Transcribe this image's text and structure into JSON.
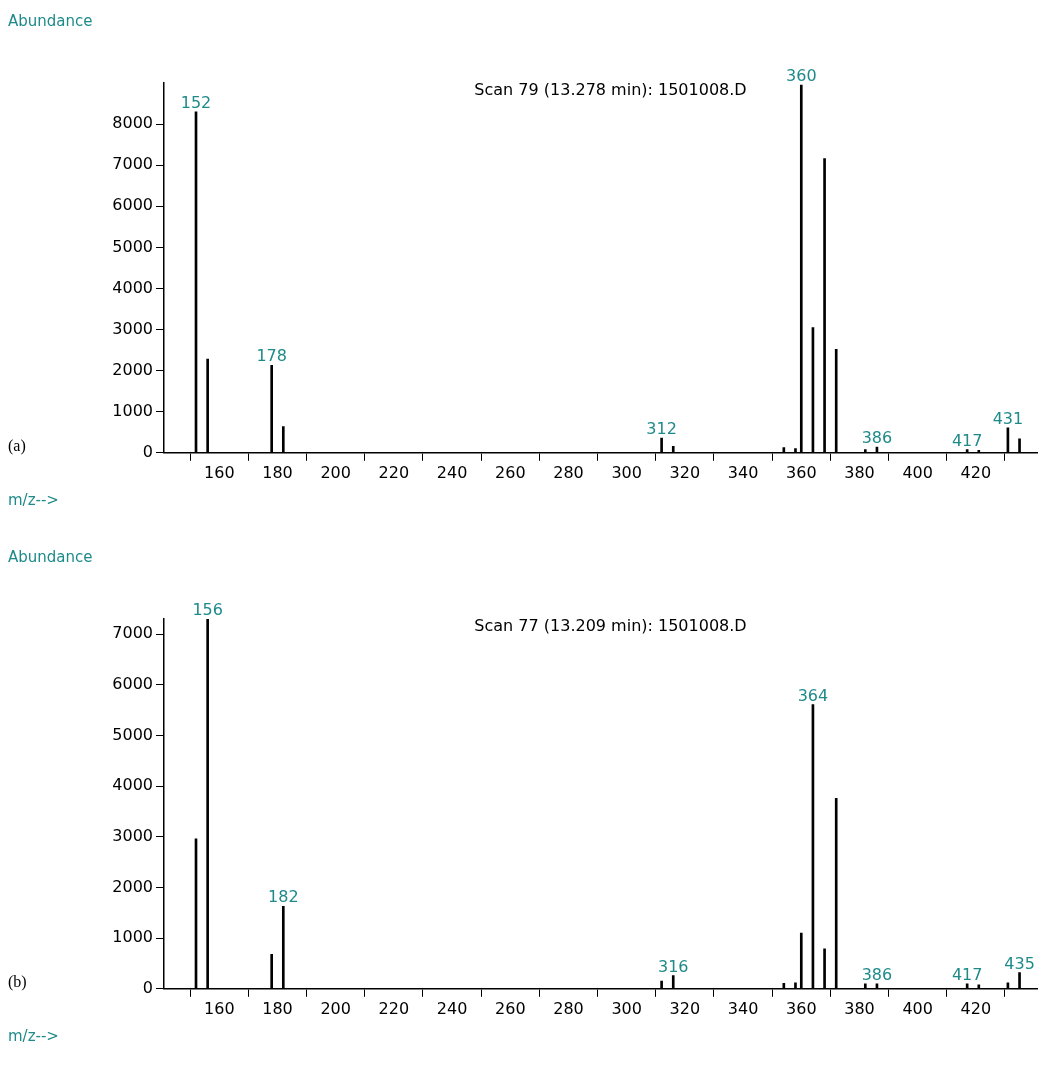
{
  "chart_data": [
    {
      "type": "bar",
      "title": "Scan 79 (13.278 min): 1501008.D",
      "xlabel": "m/z-->",
      "ylabel": "Abundance",
      "x": [
        152,
        156,
        178,
        182,
        312,
        316,
        354,
        358,
        360,
        364,
        368,
        372,
        382,
        386,
        417,
        421,
        431,
        435
      ],
      "values": [
        8300,
        2280,
        2130,
        640,
        360,
        160,
        130,
        100,
        8950,
        3050,
        7160,
        2520,
        80,
        140,
        80,
        60,
        610,
        340
      ],
      "color": "#000000",
      "xlim": [
        141,
        441
      ],
      "ylim": [
        0,
        9000
      ],
      "xticks": [
        160,
        180,
        200,
        220,
        240,
        260,
        280,
        300,
        320,
        340,
        360,
        380,
        400,
        420
      ],
      "yticks": [
        0,
        1000,
        2000,
        3000,
        4000,
        5000,
        6000,
        7000,
        8000
      ],
      "grid": false,
      "annotations": [
        "(a)",
        {
          "text": "152",
          "x": 152,
          "y": 8300
        },
        {
          "text": "178",
          "x": 178,
          "y": 2130
        },
        {
          "text": "312",
          "x": 312,
          "y": 360
        },
        {
          "text": "360",
          "x": 360,
          "y": 8950
        },
        {
          "text": "386",
          "x": 386,
          "y": 140
        },
        {
          "text": "417",
          "x": 417,
          "y": 80
        },
        {
          "text": "431",
          "x": 431,
          "y": 610
        }
      ]
    },
    {
      "type": "bar",
      "title": "Scan 77 (13.209 min): 1501008.D",
      "xlabel": "m/z-->",
      "ylabel": "Abundance",
      "x": [
        152,
        156,
        178,
        182,
        312,
        316,
        354,
        358,
        360,
        364,
        368,
        372,
        382,
        386,
        417,
        421,
        431,
        435
      ],
      "values": [
        2960,
        7300,
        680,
        1630,
        150,
        260,
        110,
        120,
        1100,
        5610,
        790,
        3760,
        100,
        100,
        100,
        80,
        120,
        320
      ],
      "color": "#000000",
      "xlim": [
        141,
        441
      ],
      "ylim": [
        0,
        7300
      ],
      "xticks": [
        160,
        180,
        200,
        220,
        240,
        260,
        280,
        300,
        320,
        340,
        360,
        380,
        400,
        420
      ],
      "yticks": [
        0,
        1000,
        2000,
        3000,
        4000,
        5000,
        6000,
        7000
      ],
      "grid": false,
      "annotations": [
        "(b)",
        {
          "text": "156",
          "x": 156,
          "y": 7300
        },
        {
          "text": "182",
          "x": 182,
          "y": 1630
        },
        {
          "text": "316",
          "x": 316,
          "y": 260
        },
        {
          "text": "364",
          "x": 364,
          "y": 5610
        },
        {
          "text": "386",
          "x": 386,
          "y": 100
        },
        {
          "text": "417",
          "x": 417,
          "y": 100
        },
        {
          "text": "435",
          "x": 435,
          "y": 320
        }
      ]
    }
  ]
}
